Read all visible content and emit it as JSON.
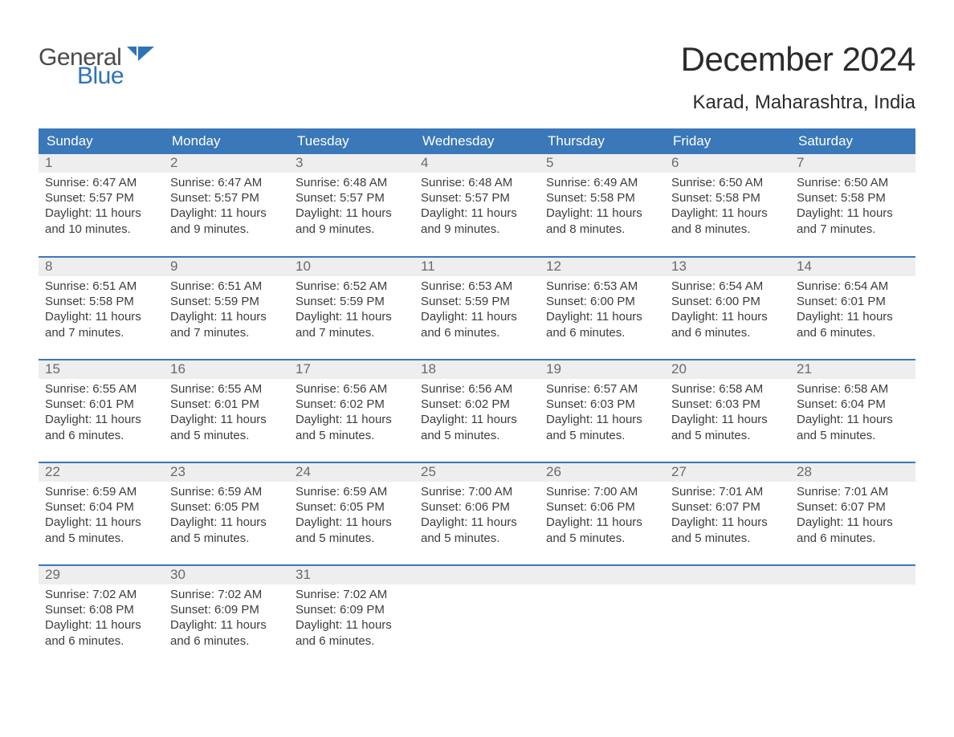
{
  "logo": {
    "word1": "General",
    "word2": "Blue"
  },
  "title": "December 2024",
  "location": "Karad, Maharashtra, India",
  "colors": {
    "header_bg": "#3a78b9",
    "header_text": "#ffffff",
    "daynum_bg": "#eeeeee",
    "daynum_text": "#6a6a6a",
    "body_text": "#3d3d3d",
    "logo_gray": "#4a4a4a",
    "logo_blue": "#2f73b7",
    "page_bg": "#ffffff"
  },
  "day_headers": [
    "Sunday",
    "Monday",
    "Tuesday",
    "Wednesday",
    "Thursday",
    "Friday",
    "Saturday"
  ],
  "weeks": [
    [
      {
        "n": "1",
        "sunrise": "Sunrise: 6:47 AM",
        "sunset": "Sunset: 5:57 PM",
        "day1": "Daylight: 11 hours",
        "day2": "and 10 minutes."
      },
      {
        "n": "2",
        "sunrise": "Sunrise: 6:47 AM",
        "sunset": "Sunset: 5:57 PM",
        "day1": "Daylight: 11 hours",
        "day2": "and 9 minutes."
      },
      {
        "n": "3",
        "sunrise": "Sunrise: 6:48 AM",
        "sunset": "Sunset: 5:57 PM",
        "day1": "Daylight: 11 hours",
        "day2": "and 9 minutes."
      },
      {
        "n": "4",
        "sunrise": "Sunrise: 6:48 AM",
        "sunset": "Sunset: 5:57 PM",
        "day1": "Daylight: 11 hours",
        "day2": "and 9 minutes."
      },
      {
        "n": "5",
        "sunrise": "Sunrise: 6:49 AM",
        "sunset": "Sunset: 5:58 PM",
        "day1": "Daylight: 11 hours",
        "day2": "and 8 minutes."
      },
      {
        "n": "6",
        "sunrise": "Sunrise: 6:50 AM",
        "sunset": "Sunset: 5:58 PM",
        "day1": "Daylight: 11 hours",
        "day2": "and 8 minutes."
      },
      {
        "n": "7",
        "sunrise": "Sunrise: 6:50 AM",
        "sunset": "Sunset: 5:58 PM",
        "day1": "Daylight: 11 hours",
        "day2": "and 7 minutes."
      }
    ],
    [
      {
        "n": "8",
        "sunrise": "Sunrise: 6:51 AM",
        "sunset": "Sunset: 5:58 PM",
        "day1": "Daylight: 11 hours",
        "day2": "and 7 minutes."
      },
      {
        "n": "9",
        "sunrise": "Sunrise: 6:51 AM",
        "sunset": "Sunset: 5:59 PM",
        "day1": "Daylight: 11 hours",
        "day2": "and 7 minutes."
      },
      {
        "n": "10",
        "sunrise": "Sunrise: 6:52 AM",
        "sunset": "Sunset: 5:59 PM",
        "day1": "Daylight: 11 hours",
        "day2": "and 7 minutes."
      },
      {
        "n": "11",
        "sunrise": "Sunrise: 6:53 AM",
        "sunset": "Sunset: 5:59 PM",
        "day1": "Daylight: 11 hours",
        "day2": "and 6 minutes."
      },
      {
        "n": "12",
        "sunrise": "Sunrise: 6:53 AM",
        "sunset": "Sunset: 6:00 PM",
        "day1": "Daylight: 11 hours",
        "day2": "and 6 minutes."
      },
      {
        "n": "13",
        "sunrise": "Sunrise: 6:54 AM",
        "sunset": "Sunset: 6:00 PM",
        "day1": "Daylight: 11 hours",
        "day2": "and 6 minutes."
      },
      {
        "n": "14",
        "sunrise": "Sunrise: 6:54 AM",
        "sunset": "Sunset: 6:01 PM",
        "day1": "Daylight: 11 hours",
        "day2": "and 6 minutes."
      }
    ],
    [
      {
        "n": "15",
        "sunrise": "Sunrise: 6:55 AM",
        "sunset": "Sunset: 6:01 PM",
        "day1": "Daylight: 11 hours",
        "day2": "and 6 minutes."
      },
      {
        "n": "16",
        "sunrise": "Sunrise: 6:55 AM",
        "sunset": "Sunset: 6:01 PM",
        "day1": "Daylight: 11 hours",
        "day2": "and 5 minutes."
      },
      {
        "n": "17",
        "sunrise": "Sunrise: 6:56 AM",
        "sunset": "Sunset: 6:02 PM",
        "day1": "Daylight: 11 hours",
        "day2": "and 5 minutes."
      },
      {
        "n": "18",
        "sunrise": "Sunrise: 6:56 AM",
        "sunset": "Sunset: 6:02 PM",
        "day1": "Daylight: 11 hours",
        "day2": "and 5 minutes."
      },
      {
        "n": "19",
        "sunrise": "Sunrise: 6:57 AM",
        "sunset": "Sunset: 6:03 PM",
        "day1": "Daylight: 11 hours",
        "day2": "and 5 minutes."
      },
      {
        "n": "20",
        "sunrise": "Sunrise: 6:58 AM",
        "sunset": "Sunset: 6:03 PM",
        "day1": "Daylight: 11 hours",
        "day2": "and 5 minutes."
      },
      {
        "n": "21",
        "sunrise": "Sunrise: 6:58 AM",
        "sunset": "Sunset: 6:04 PM",
        "day1": "Daylight: 11 hours",
        "day2": "and 5 minutes."
      }
    ],
    [
      {
        "n": "22",
        "sunrise": "Sunrise: 6:59 AM",
        "sunset": "Sunset: 6:04 PM",
        "day1": "Daylight: 11 hours",
        "day2": "and 5 minutes."
      },
      {
        "n": "23",
        "sunrise": "Sunrise: 6:59 AM",
        "sunset": "Sunset: 6:05 PM",
        "day1": "Daylight: 11 hours",
        "day2": "and 5 minutes."
      },
      {
        "n": "24",
        "sunrise": "Sunrise: 6:59 AM",
        "sunset": "Sunset: 6:05 PM",
        "day1": "Daylight: 11 hours",
        "day2": "and 5 minutes."
      },
      {
        "n": "25",
        "sunrise": "Sunrise: 7:00 AM",
        "sunset": "Sunset: 6:06 PM",
        "day1": "Daylight: 11 hours",
        "day2": "and 5 minutes."
      },
      {
        "n": "26",
        "sunrise": "Sunrise: 7:00 AM",
        "sunset": "Sunset: 6:06 PM",
        "day1": "Daylight: 11 hours",
        "day2": "and 5 minutes."
      },
      {
        "n": "27",
        "sunrise": "Sunrise: 7:01 AM",
        "sunset": "Sunset: 6:07 PM",
        "day1": "Daylight: 11 hours",
        "day2": "and 5 minutes."
      },
      {
        "n": "28",
        "sunrise": "Sunrise: 7:01 AM",
        "sunset": "Sunset: 6:07 PM",
        "day1": "Daylight: 11 hours",
        "day2": "and 6 minutes."
      }
    ],
    [
      {
        "n": "29",
        "sunrise": "Sunrise: 7:02 AM",
        "sunset": "Sunset: 6:08 PM",
        "day1": "Daylight: 11 hours",
        "day2": "and 6 minutes."
      },
      {
        "n": "30",
        "sunrise": "Sunrise: 7:02 AM",
        "sunset": "Sunset: 6:09 PM",
        "day1": "Daylight: 11 hours",
        "day2": "and 6 minutes."
      },
      {
        "n": "31",
        "sunrise": "Sunrise: 7:02 AM",
        "sunset": "Sunset: 6:09 PM",
        "day1": "Daylight: 11 hours",
        "day2": "and 6 minutes."
      },
      null,
      null,
      null,
      null
    ]
  ]
}
